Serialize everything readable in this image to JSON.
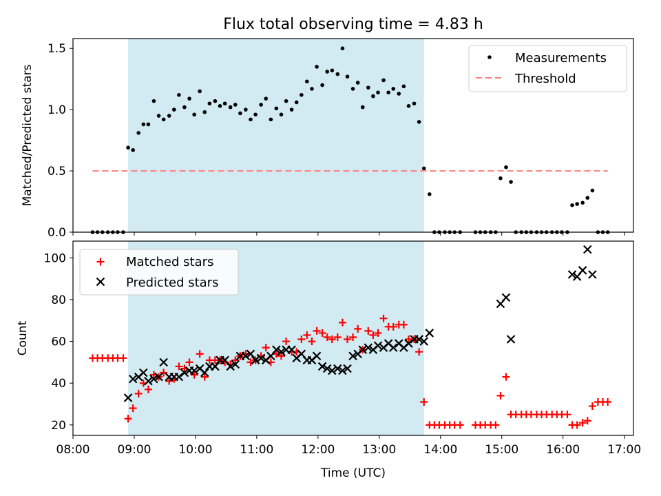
{
  "figure": {
    "title": "Flux total observing time = 4.83 h"
  },
  "colors": {
    "shade": "#add8e6",
    "measurement": "#000000",
    "threshold": "#ff7f7f",
    "matched": "#ff0000",
    "predicted": "#000000"
  },
  "chart_data": [
    {
      "type": "scatter",
      "panel": "top",
      "title": "Flux total observing time = 4.83 h",
      "xlabel": "",
      "ylabel": "Matched/Predicted stars",
      "x_unit": "hours (UTC)",
      "xlim": [
        8.0,
        17.15
      ],
      "ylim": [
        0.0,
        1.58
      ],
      "yticks": [
        0.0,
        0.5,
        1.0,
        1.5
      ],
      "ytick_labels": [
        "0.0",
        "0.5",
        "1.0",
        "1.5"
      ],
      "grid": false,
      "legend": "top-right",
      "shaded_span": [
        8.9,
        13.73
      ],
      "series": [
        {
          "name": "Measurements",
          "kind": "points",
          "x": [
            8.32,
            8.4,
            8.48,
            8.57,
            8.65,
            8.73,
            8.82,
            8.9,
            8.98,
            9.07,
            9.15,
            9.23,
            9.32,
            9.4,
            9.48,
            9.57,
            9.65,
            9.73,
            9.82,
            9.9,
            9.98,
            10.07,
            10.15,
            10.23,
            10.32,
            10.4,
            10.48,
            10.57,
            10.65,
            10.73,
            10.82,
            10.9,
            10.98,
            11.07,
            11.15,
            11.23,
            11.32,
            11.4,
            11.48,
            11.57,
            11.65,
            11.73,
            11.82,
            11.9,
            11.98,
            12.07,
            12.15,
            12.23,
            12.32,
            12.4,
            12.48,
            12.57,
            12.65,
            12.73,
            12.82,
            12.9,
            12.98,
            13.07,
            13.15,
            13.23,
            13.32,
            13.4,
            13.48,
            13.57,
            13.65,
            13.73,
            13.82,
            13.9,
            13.98,
            14.07,
            14.15,
            14.23,
            14.32,
            14.57,
            14.65,
            14.73,
            14.82,
            14.9,
            14.98,
            15.07,
            15.15,
            15.23,
            15.32,
            15.4,
            15.48,
            15.57,
            15.65,
            15.73,
            15.82,
            15.9,
            15.98,
            16.07,
            16.15,
            16.23,
            16.32,
            16.4,
            16.48,
            16.57,
            16.65,
            16.73
          ],
          "y": [
            0,
            0,
            0,
            0,
            0,
            0,
            0,
            0.69,
            0.67,
            0.81,
            0.88,
            0.88,
            1.07,
            0.95,
            0.92,
            0.95,
            1.0,
            1.12,
            1.02,
            1.09,
            0.96,
            1.15,
            0.98,
            1.05,
            1.07,
            1.03,
            1.05,
            1.02,
            1.04,
            0.97,
            1.0,
            0.92,
            0.96,
            1.04,
            1.09,
            0.92,
            1.01,
            0.96,
            1.07,
            1.0,
            1.06,
            1.12,
            1.23,
            1.17,
            1.35,
            1.2,
            1.31,
            1.32,
            1.29,
            1.5,
            1.27,
            1.17,
            1.22,
            1.02,
            1.18,
            1.11,
            1.14,
            1.24,
            1.14,
            1.17,
            1.13,
            1.19,
            1.03,
            1.05,
            0.9,
            0.52,
            0.31,
            0,
            0,
            0,
            0,
            0,
            0,
            0,
            0,
            0,
            0,
            0,
            0.44,
            0.53,
            0.41,
            0,
            0,
            0,
            0,
            0,
            0,
            0,
            0,
            0,
            0,
            0,
            0.22,
            0.23,
            0.24,
            0.28,
            0.34,
            0,
            0,
            0
          ]
        },
        {
          "name": "Threshold",
          "kind": "dashed-line",
          "x": [
            8.32,
            16.73
          ],
          "y": [
            0.5,
            0.5
          ]
        }
      ]
    },
    {
      "type": "scatter",
      "panel": "bottom",
      "xlabel": "Time (UTC)",
      "ylabel": "Count",
      "x_unit": "hours (UTC)",
      "xlim": [
        8.0,
        17.15
      ],
      "ylim": [
        15,
        108
      ],
      "xticks": [
        8,
        9,
        10,
        11,
        12,
        13,
        14,
        15,
        16,
        17
      ],
      "xtick_labels": [
        "08:00",
        "09:00",
        "10:00",
        "11:00",
        "12:00",
        "13:00",
        "14:00",
        "15:00",
        "16:00",
        "17:00"
      ],
      "yticks": [
        20,
        40,
        60,
        80,
        100
      ],
      "ytick_labels": [
        "20",
        "40",
        "60",
        "80",
        "100"
      ],
      "grid": false,
      "legend": "top-left",
      "shaded_span": [
        8.9,
        13.73
      ],
      "series": [
        {
          "name": "Matched stars",
          "marker": "plus",
          "x": [
            8.32,
            8.4,
            8.48,
            8.57,
            8.65,
            8.73,
            8.82,
            8.9,
            8.98,
            9.07,
            9.15,
            9.23,
            9.32,
            9.4,
            9.48,
            9.57,
            9.65,
            9.73,
            9.82,
            9.9,
            9.98,
            10.07,
            10.15,
            10.23,
            10.32,
            10.4,
            10.48,
            10.57,
            10.65,
            10.73,
            10.82,
            10.9,
            10.98,
            11.07,
            11.15,
            11.23,
            11.32,
            11.4,
            11.48,
            11.57,
            11.65,
            11.73,
            11.82,
            11.9,
            11.98,
            12.07,
            12.15,
            12.23,
            12.32,
            12.4,
            12.48,
            12.57,
            12.65,
            12.73,
            12.82,
            12.9,
            12.98,
            13.07,
            13.15,
            13.23,
            13.32,
            13.4,
            13.48,
            13.57,
            13.65,
            13.73,
            13.82,
            13.9,
            13.98,
            14.07,
            14.15,
            14.23,
            14.32,
            14.57,
            14.65,
            14.73,
            14.82,
            14.9,
            14.98,
            15.07,
            15.15,
            15.23,
            15.32,
            15.4,
            15.48,
            15.57,
            15.65,
            15.73,
            15.82,
            15.9,
            15.98,
            16.07,
            16.15,
            16.23,
            16.32,
            16.4,
            16.48,
            16.57,
            16.65,
            16.73
          ],
          "y": [
            52,
            52,
            52,
            52,
            52,
            52,
            52,
            23,
            28,
            35,
            40,
            37,
            44,
            43,
            45,
            41,
            42,
            48,
            47,
            50,
            44,
            54,
            43,
            51,
            51,
            51,
            50,
            49,
            51,
            53,
            54,
            50,
            51,
            53,
            57,
            50,
            54,
            53,
            60,
            55,
            55,
            61,
            63,
            60,
            65,
            64,
            62,
            61,
            62,
            69,
            61,
            62,
            66,
            56,
            65,
            63,
            64,
            71,
            67,
            67,
            68,
            68,
            61,
            61,
            55,
            31,
            20,
            20,
            20,
            20,
            20,
            20,
            20,
            20,
            20,
            20,
            20,
            20,
            34,
            43,
            25,
            25,
            25,
            25,
            25,
            25,
            25,
            25,
            25,
            25,
            25,
            25,
            20,
            20,
            21,
            22,
            29,
            31,
            31,
            31
          ]
        },
        {
          "name": "Predicted stars",
          "marker": "cross",
          "x": [
            8.9,
            8.98,
            9.07,
            9.15,
            9.23,
            9.32,
            9.4,
            9.48,
            9.57,
            9.65,
            9.73,
            9.82,
            9.9,
            9.98,
            10.07,
            10.15,
            10.23,
            10.32,
            10.4,
            10.48,
            10.57,
            10.65,
            10.73,
            10.82,
            10.9,
            10.98,
            11.07,
            11.15,
            11.23,
            11.32,
            11.4,
            11.48,
            11.57,
            11.65,
            11.73,
            11.82,
            11.9,
            11.98,
            12.07,
            12.15,
            12.23,
            12.32,
            12.4,
            12.48,
            12.57,
            12.65,
            12.73,
            12.82,
            12.9,
            12.98,
            13.07,
            13.15,
            13.23,
            13.32,
            13.4,
            13.48,
            13.57,
            13.65,
            13.73,
            13.82,
            14.98,
            15.07,
            15.15,
            16.15,
            16.23,
            16.32,
            16.4,
            16.48
          ],
          "y": [
            33,
            42,
            43,
            45,
            41,
            42,
            43,
            50,
            43,
            43,
            43,
            45,
            46,
            46,
            47,
            45,
            48,
            48,
            51,
            51,
            48,
            49,
            53,
            53,
            54,
            51,
            52,
            51,
            53,
            56,
            55,
            56,
            56,
            52,
            54,
            51,
            51,
            53,
            48,
            47,
            46,
            47,
            46,
            47,
            53,
            54,
            56,
            57,
            56,
            58,
            57,
            59,
            57,
            59,
            57,
            59,
            61,
            61,
            60,
            64,
            78,
            81,
            61,
            92,
            91,
            94,
            104,
            92
          ]
        }
      ]
    }
  ]
}
